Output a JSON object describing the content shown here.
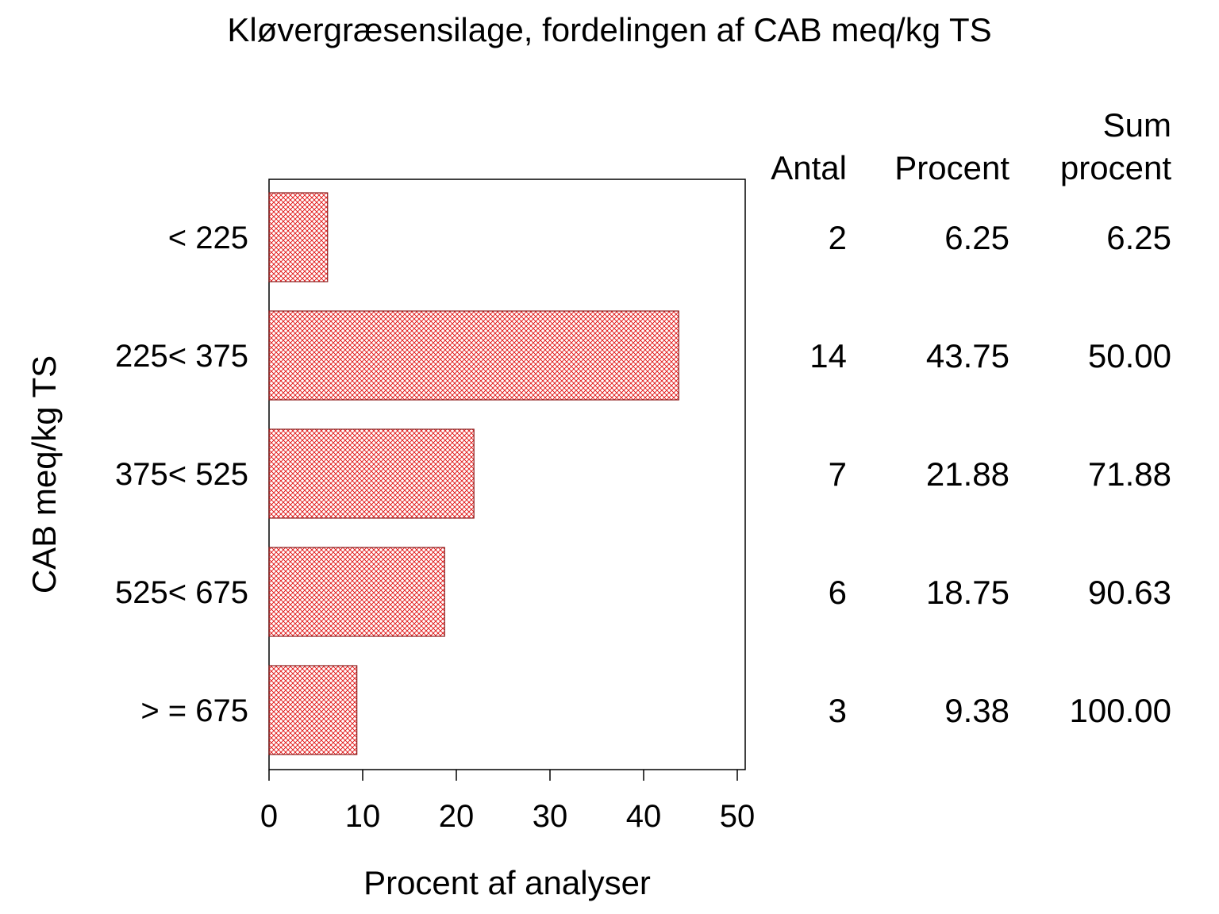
{
  "chart_data": {
    "type": "bar",
    "orientation": "horizontal",
    "title": "Kløvergræsensilage, fordelingen af CAB meq/kg TS",
    "xlabel": "Procent af analyser",
    "ylabel": "CAB meq/kg TS",
    "xlim": [
      0,
      50
    ],
    "xticks": [
      "0",
      "10",
      "20",
      "30",
      "40",
      "50"
    ],
    "categories": [
      "< 225",
      "225< 375",
      "375< 525",
      "525< 675",
      "> = 675"
    ],
    "values": [
      6.25,
      43.75,
      21.88,
      18.75,
      9.38
    ],
    "bar_fill": "crosshatch",
    "bar_color": "#e01010",
    "bar_outline": "#8b1a1a",
    "table": {
      "headers": [
        {
          "lines": [
            "Antal"
          ]
        },
        {
          "lines": [
            "Procent"
          ]
        },
        {
          "lines": [
            "Sum",
            "procent"
          ]
        }
      ],
      "rows": [
        [
          "2",
          "6.25",
          "6.25"
        ],
        [
          "14",
          "43.75",
          "50.00"
        ],
        [
          "7",
          "21.88",
          "71.88"
        ],
        [
          "6",
          "18.75",
          "90.63"
        ],
        [
          "3",
          "9.38",
          "100.00"
        ]
      ]
    }
  }
}
